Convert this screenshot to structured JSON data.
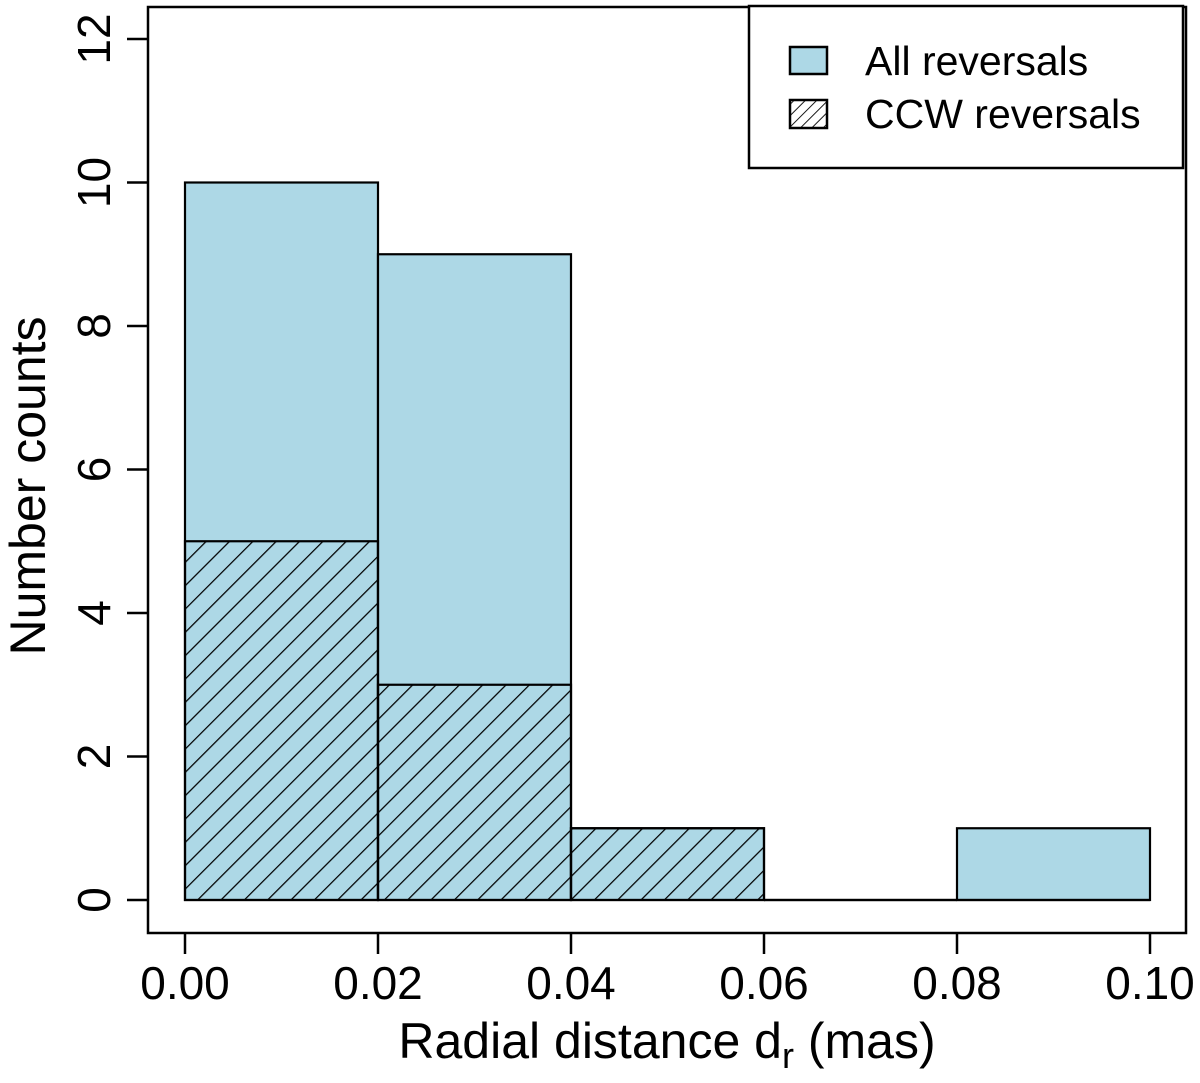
{
  "figure": {
    "background": "#ffffff",
    "bar_fill": "#ADD8E6",
    "outline_color": "#000000",
    "hatch_color": "#000000"
  },
  "chart_data": {
    "type": "bar",
    "subtype": "overlaid-histogram",
    "title": "",
    "xlabel": "Radial distance dr (mas)",
    "xlabel_main": "Radial distance d",
    "xlabel_sub": "r",
    "xlabel_unit": " (mas)",
    "ylabel": "Number counts",
    "bin_edges": [
      0.0,
      0.02,
      0.04,
      0.06,
      0.08,
      0.1
    ],
    "bin_width": 0.02,
    "x_range": [
      0.0,
      0.1
    ],
    "ylim": [
      0,
      12
    ],
    "x_tick_labels": [
      "0.00",
      "0.02",
      "0.04",
      "0.06",
      "0.08",
      "0.10"
    ],
    "y_ticks": [
      0,
      2,
      4,
      6,
      8,
      10,
      12
    ],
    "y_tick_labels": [
      "0",
      "2",
      "4",
      "6",
      "8",
      "10",
      "12"
    ],
    "grid": false,
    "legend_position": "topright",
    "series": [
      {
        "name": "All reversals",
        "style": "fill",
        "values": [
          10,
          9,
          1,
          0,
          1
        ]
      },
      {
        "name": "CCW reversals",
        "style": "hatch",
        "values": [
          5,
          3,
          1,
          0,
          0
        ]
      }
    ]
  }
}
